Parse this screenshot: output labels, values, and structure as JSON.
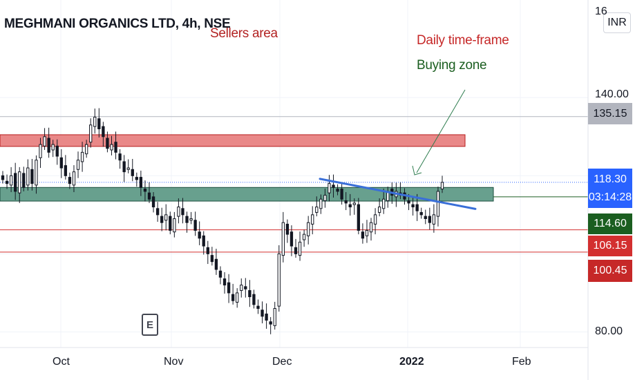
{
  "header": {
    "symbol_title": "MEGHMANI ORGANICS LTD, 4h, NSE",
    "currency": "INR",
    "event_badge": "E"
  },
  "annotations": {
    "sellers": {
      "text": "Sellers area",
      "color": "#b22222"
    },
    "daily": {
      "text": "Daily time-frame",
      "color": "#c62828"
    },
    "buying": {
      "text": "Buying zone",
      "color": "#1b5e20"
    }
  },
  "price_tags": {
    "previous_high": {
      "value": "135.15",
      "bg": "#b2b5be"
    },
    "last_price": {
      "value": "118.30",
      "countdown": "03:14:28",
      "bg": "#2962ff"
    },
    "support_1": {
      "value": "114.60",
      "bg": "#1b5e20"
    },
    "support_2": {
      "value": "106.15",
      "bg": "#d32f2f"
    },
    "support_3": {
      "value": "100.45",
      "bg": "#c62828"
    }
  },
  "chart_data": {
    "type": "candlestick",
    "timeframe": "4h",
    "x_labels": [
      "Oct",
      "Nov",
      "Dec",
      "2022",
      "Feb"
    ],
    "y_tick_labels": [
      "140.00",
      "80.00"
    ],
    "y_range": [
      76,
      165
    ],
    "close_series": [
      119,
      118,
      120,
      116,
      121,
      117,
      122,
      118,
      124,
      128,
      130,
      126,
      128,
      125,
      122,
      120,
      118,
      121,
      124,
      126,
      128,
      133,
      135,
      132,
      130,
      127,
      128,
      126,
      124,
      121,
      122,
      120,
      119,
      117,
      116,
      114,
      112,
      110,
      108,
      110,
      106,
      109,
      112,
      110,
      108,
      109,
      106,
      104,
      102,
      100,
      98,
      96,
      94,
      92,
      90,
      88,
      90,
      92,
      91,
      89,
      87,
      86,
      84,
      83,
      82,
      86,
      100,
      108,
      105,
      102,
      100,
      103,
      105,
      108,
      110,
      112,
      114,
      115,
      118,
      117,
      116,
      114,
      113,
      112,
      113,
      106,
      104,
      106,
      108,
      110,
      112,
      114,
      116,
      115,
      116,
      115,
      114,
      113,
      112,
      111,
      110,
      109,
      108,
      110,
      116,
      118.3
    ],
    "zones": [
      {
        "name": "Sellers area",
        "low": 127.5,
        "high": 130.5,
        "color": "#e57373"
      },
      {
        "name": "Buying zone",
        "low": 113.5,
        "high": 117.0,
        "color": "#4e8f7a"
      }
    ],
    "horizontal_levels": [
      135.15,
      118.3,
      114.6,
      106.15,
      100.45
    ],
    "trendline": {
      "start": [
        0.5,
        119.2
      ],
      "end": [
        0.74,
        111.5
      ]
    },
    "last_price": 118.3
  },
  "colors": {
    "up": "#000000",
    "down": "#000000",
    "grid": "#f0f3fa",
    "axis_border": "#e0e3eb",
    "trendline": "#3a6fd8",
    "arrow": "#2e7d4f",
    "prev_high_line": "#b2b5be",
    "red_line": "#d32f2f"
  }
}
